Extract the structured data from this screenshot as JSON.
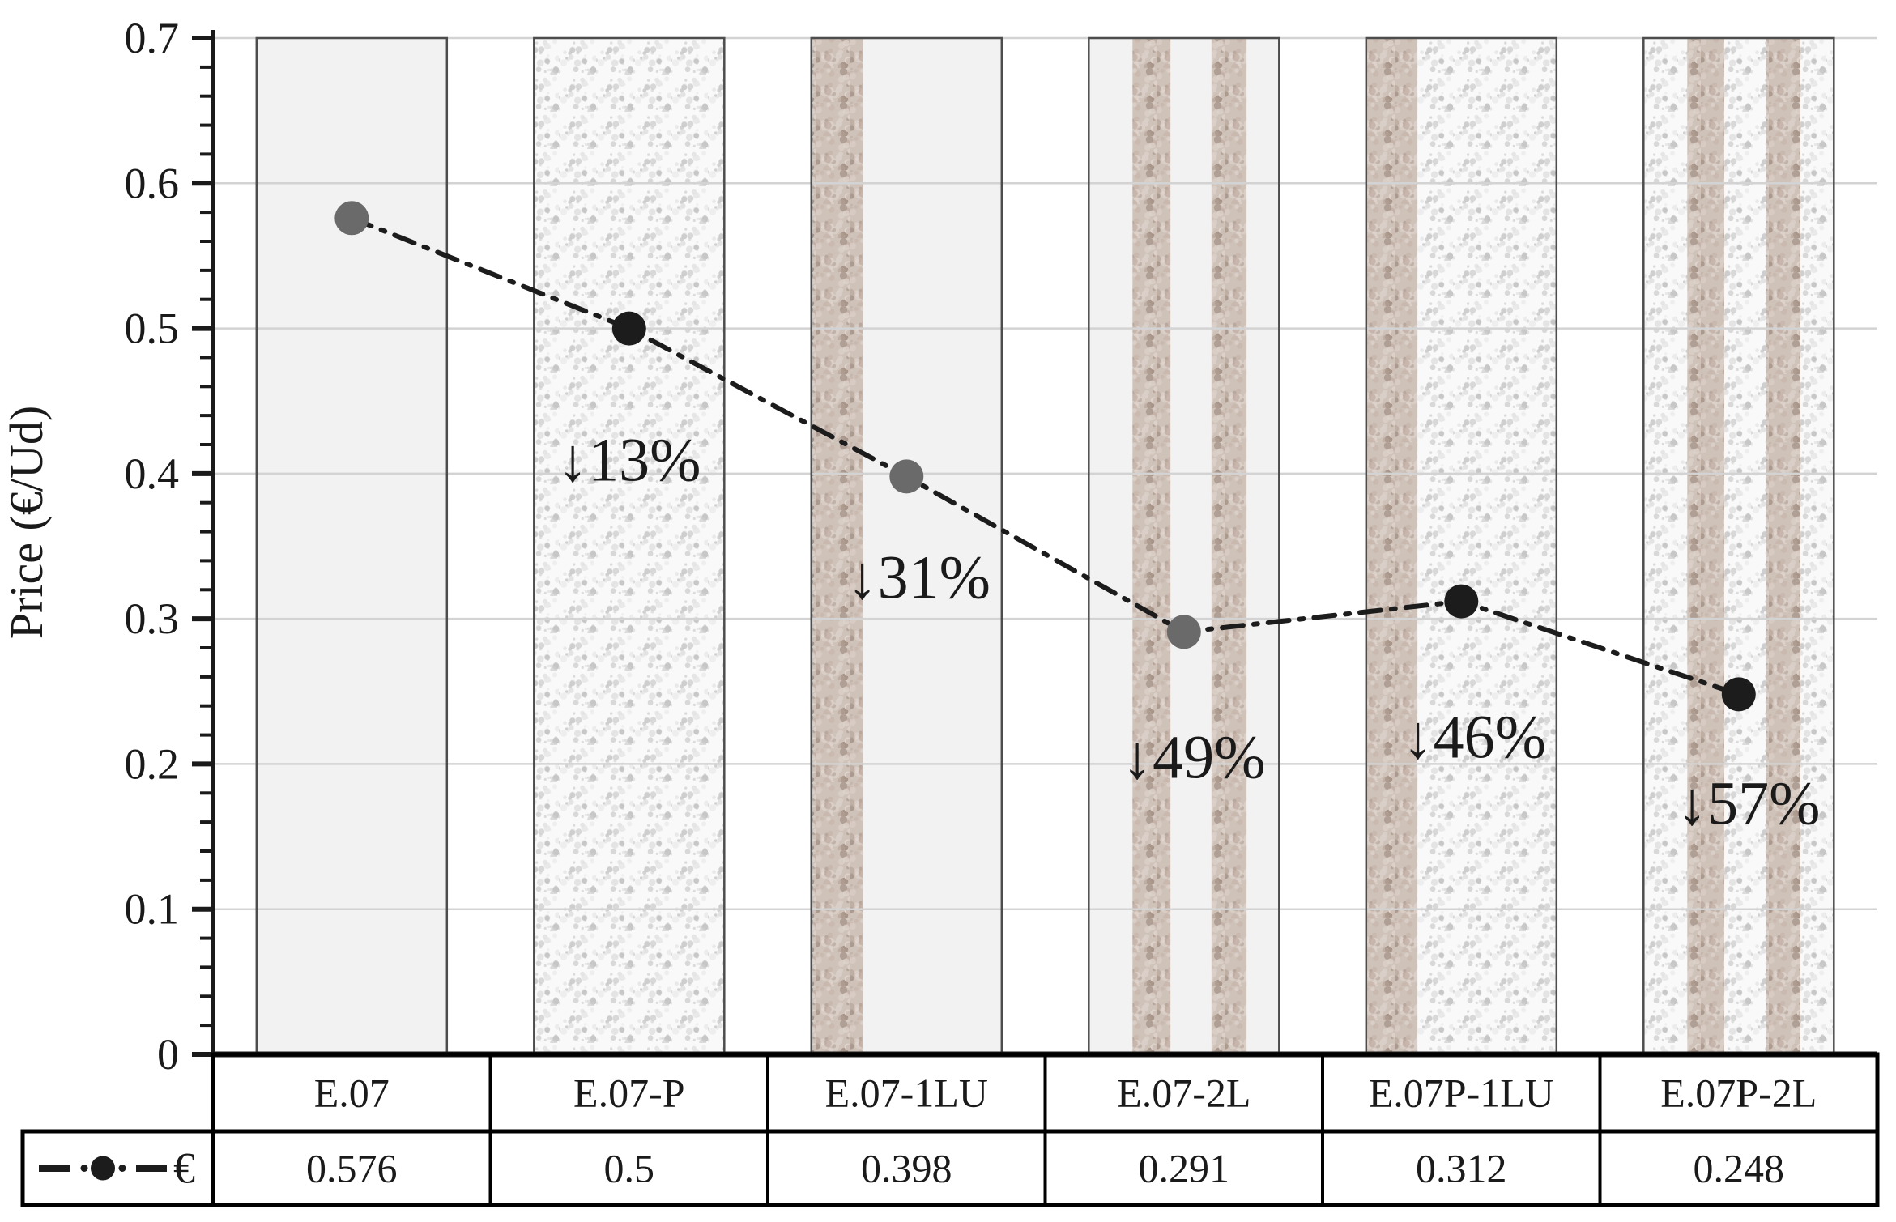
{
  "chart_data": {
    "type": "line",
    "title": "",
    "xlabel": "",
    "ylabel": "Price (€/Ud)",
    "ylim": [
      0,
      0.7
    ],
    "y_major_step": 0.1,
    "y_minor_step": 0.02,
    "grid": "horizontal-major",
    "legend_position": "bottom-table",
    "line_style": "dash-dot",
    "y_tick_labels": [
      "0.7",
      "0.6",
      "0.5",
      "0.4",
      "0.3",
      "0.2",
      "0.1",
      "0"
    ],
    "categories": [
      "E.07",
      "E.07-P",
      "E.07-1LU",
      "E.07-2L",
      "E.07P-1LU",
      "E.07P-2L"
    ],
    "series": [
      {
        "name": "€",
        "values": [
          0.576,
          0.5,
          0.398,
          0.291,
          0.312,
          0.248
        ]
      }
    ],
    "value_labels": [
      "0.576",
      "0.5",
      "0.398",
      "0.291",
      "0.312",
      "0.248"
    ],
    "annotations": [
      null,
      "↓13%",
      "↓31%",
      "↓49%",
      "↓46%",
      "↓57%"
    ],
    "marker_colors": [
      "#6a6a6a",
      "#1c1c1c",
      "#6a6a6a",
      "#6a6a6a",
      "#1c1c1c",
      "#1c1c1c"
    ],
    "background_bars": [
      {
        "category": "E.07",
        "segments": [
          [
            "plain",
            1
          ]
        ]
      },
      {
        "category": "E.07-P",
        "segments": [
          [
            "speckle",
            1
          ]
        ]
      },
      {
        "category": "E.07-1LU",
        "segments": [
          [
            "brown",
            0.27
          ],
          [
            "plain",
            0.73
          ]
        ]
      },
      {
        "category": "E.07-2L",
        "segments": [
          [
            "plain",
            0.23
          ],
          [
            "brown",
            0.2
          ],
          [
            "plain",
            0.215
          ],
          [
            "brown",
            0.185
          ],
          [
            "plain",
            0.17
          ]
        ]
      },
      {
        "category": "E.07P-1LU",
        "segments": [
          [
            "brown",
            0.27
          ],
          [
            "speckle",
            0.73
          ]
        ]
      },
      {
        "category": "E.07P-2L",
        "segments": [
          [
            "speckle",
            0.23
          ],
          [
            "brown",
            0.195
          ],
          [
            "speckle",
            0.22
          ],
          [
            "brown",
            0.18
          ],
          [
            "speckle",
            0.175
          ]
        ]
      }
    ],
    "colors": {
      "plain_fill": "#f2f2f2",
      "gridline": "#d3d3d3",
      "bar_border": "#4d4d4d",
      "axis": "#1a1a1a",
      "line": "#1c1c1c",
      "table_border": "#000000",
      "speckle_base": "#f9f9f9",
      "brown_base": "#cfc2b9"
    }
  },
  "legend": {
    "series_label": "€"
  }
}
